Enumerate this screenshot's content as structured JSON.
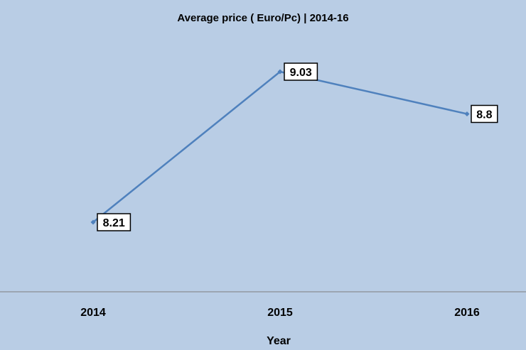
{
  "chart_data": {
    "type": "line",
    "title": "Average price ( Euro/Pc) | 2014-16",
    "xlabel": "Year",
    "ylabel": "",
    "categories": [
      "2014",
      "2015",
      "2016"
    ],
    "series": [
      {
        "values": [
          8.21,
          9.03,
          8.8
        ],
        "data_labels": [
          "8.21",
          "9.03",
          "8.8"
        ],
        "color": "#4f81bd"
      }
    ],
    "ylim": [
      7.9,
      9.3
    ],
    "grid": false,
    "legend": "none",
    "background_color": "#b9cde5",
    "axis_color": "#7f7f7f",
    "label_box_fill": "#ffffff",
    "label_box_border": "#000000"
  }
}
